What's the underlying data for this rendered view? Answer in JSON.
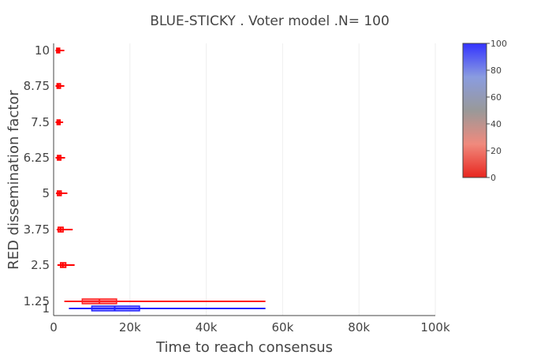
{
  "chart_data": {
    "type": "box",
    "title": "BLUE-STICKY . Voter model .N= 100",
    "xlabel": "Time to reach consensus",
    "ylabel": "RED dissemination factor",
    "xlim": [
      0,
      100000
    ],
    "x_ticks": [
      0,
      20000,
      40000,
      60000,
      80000,
      100000
    ],
    "x_tick_labels": [
      "0",
      "20k",
      "40k",
      "60k",
      "80k",
      "100k"
    ],
    "y_categories": [
      "1",
      "1.25",
      "2.5",
      "3.75",
      "5",
      "6.25",
      "7.5",
      "8.75",
      "10"
    ],
    "grid": "vertical",
    "colorbar": {
      "min": 0,
      "max": 100,
      "ticks": [
        0,
        20,
        40,
        60,
        80,
        100
      ],
      "colors": [
        "#e8261f",
        "#f08a7d",
        "#999999",
        "#8a9ce0",
        "#3333ff"
      ]
    },
    "series": [
      {
        "category": "10",
        "color": "#ff0000",
        "min": 500,
        "q1": 800,
        "median": 1200,
        "q3": 1600,
        "max": 2800
      },
      {
        "category": "8.75",
        "color": "#ff0000",
        "min": 500,
        "q1": 900,
        "median": 1300,
        "q3": 1800,
        "max": 2800
      },
      {
        "category": "7.5",
        "color": "#ff0000",
        "min": 500,
        "q1": 900,
        "median": 1300,
        "q3": 1700,
        "max": 2500
      },
      {
        "category": "6.25",
        "color": "#ff0000",
        "min": 500,
        "q1": 1000,
        "median": 1400,
        "q3": 1900,
        "max": 3000
      },
      {
        "category": "5",
        "color": "#ff0000",
        "min": 600,
        "q1": 1000,
        "median": 1500,
        "q3": 2000,
        "max": 3600
      },
      {
        "category": "3.75",
        "color": "#ff0000",
        "min": 800,
        "q1": 1200,
        "median": 1800,
        "q3": 2500,
        "max": 5000
      },
      {
        "category": "2.5",
        "color": "#ff0000",
        "min": 1000,
        "q1": 1800,
        "median": 2400,
        "q3": 3200,
        "max": 5500
      },
      {
        "category": "1.25",
        "color": "#ff2020",
        "min": 2800,
        "q1": 7500,
        "median": 12000,
        "q3": 16500,
        "max": 55500
      },
      {
        "category": "1",
        "color": "#2424ff",
        "min": 4000,
        "q1": 10000,
        "median": 16000,
        "q3": 22500,
        "max": 55500
      }
    ]
  }
}
